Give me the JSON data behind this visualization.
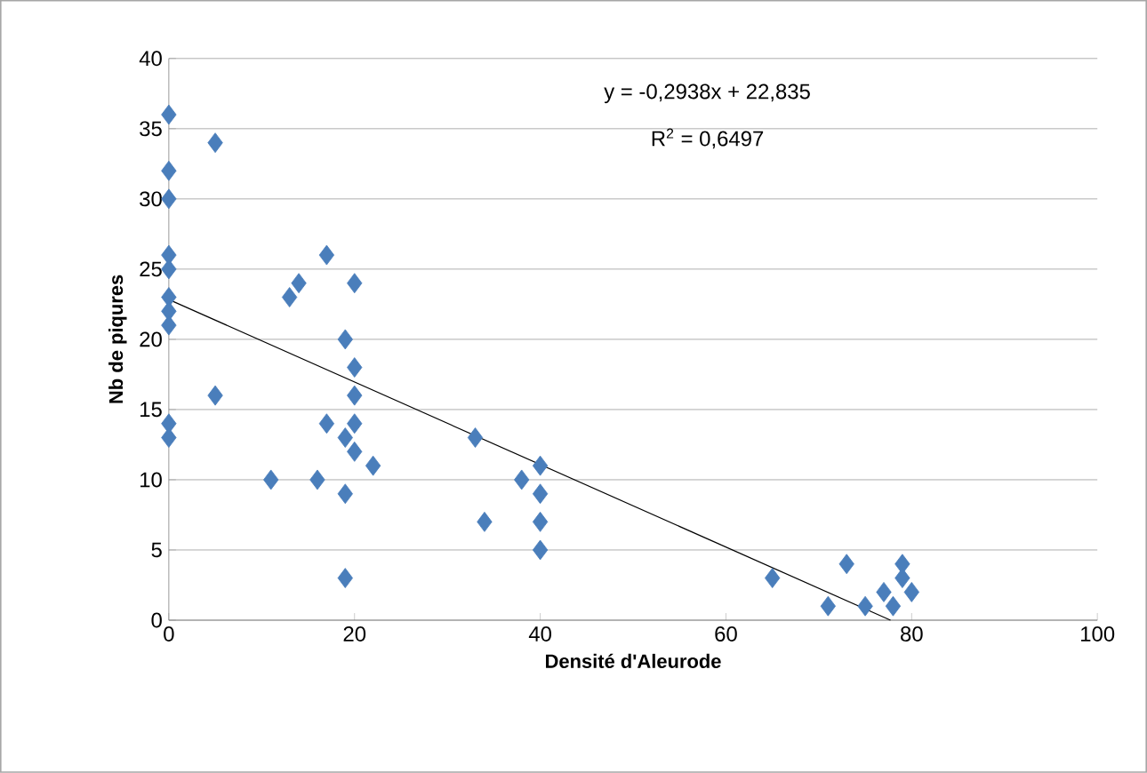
{
  "chart_data": {
    "type": "scatter",
    "xlabel": "Densité d'Aleurode",
    "ylabel": "Nb de piqures",
    "xlim": [
      0,
      100
    ],
    "xticks": [
      0,
      20,
      40,
      60,
      80,
      100
    ],
    "ylim": [
      0,
      40
    ],
    "yticks": [
      0,
      5,
      10,
      15,
      20,
      25,
      30,
      35,
      40
    ],
    "grid": "y",
    "marker": "diamond",
    "series": [
      {
        "color": "#4a7ebb",
        "x": [
          0,
          0,
          0,
          0,
          0,
          0,
          0,
          0,
          0,
          0,
          5,
          5,
          11,
          13,
          14,
          16,
          17,
          17,
          19,
          19,
          19,
          19,
          20,
          20,
          20,
          20,
          20,
          22,
          33,
          34,
          38,
          40,
          40,
          40,
          40,
          65,
          71,
          73,
          75,
          77,
          78,
          79,
          79,
          80
        ],
        "values": [
          36,
          32,
          30,
          26,
          25,
          23,
          22,
          21,
          14,
          13,
          34,
          16,
          10,
          23,
          24,
          10,
          26,
          14,
          20,
          13,
          9,
          3,
          24,
          18,
          16,
          14,
          12,
          11,
          13,
          7,
          10,
          11,
          9,
          7,
          5,
          3,
          1,
          4,
          1,
          2,
          1,
          4,
          3,
          2
        ]
      },
      {
        "type": "line",
        "marker": "none",
        "color": "#000000",
        "x": [
          0,
          77.72
        ],
        "values": [
          22.835,
          0
        ]
      }
    ],
    "annotations": [
      "y = -0,2938x + 22,835",
      "R$^{2}$ = 0,6497"
    ]
  }
}
